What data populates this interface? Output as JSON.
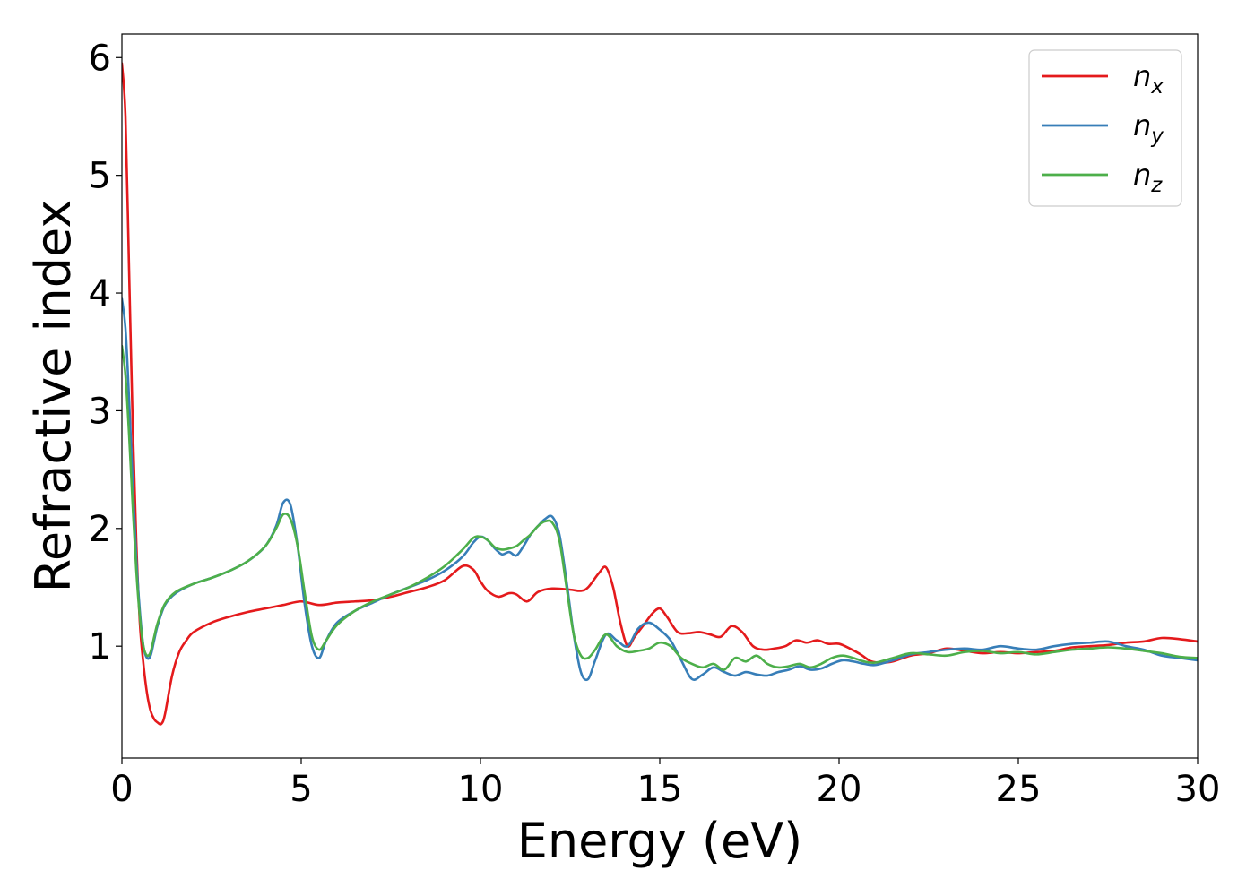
{
  "chart_data": {
    "type": "line",
    "xlabel": "Energy (eV)",
    "ylabel": "Refractive index",
    "xlim": [
      0,
      30
    ],
    "ylim": [
      0.05,
      6.2
    ],
    "xticks": [
      0,
      5,
      10,
      15,
      20,
      25,
      30
    ],
    "yticks": [
      1,
      2,
      3,
      4,
      5,
      6
    ],
    "grid": false,
    "legend_position": "top-right",
    "series": [
      {
        "name": "n",
        "subscript": "x",
        "color": "#e41a1c",
        "x": [
          0,
          0.1,
          0.2,
          0.3,
          0.4,
          0.5,
          0.6,
          0.7,
          0.8,
          0.9,
          1.0,
          1.1,
          1.2,
          1.4,
          1.6,
          1.8,
          2.0,
          2.5,
          3.0,
          3.5,
          4.0,
          4.5,
          5.0,
          5.5,
          6.0,
          6.5,
          7.0,
          7.5,
          8.0,
          8.5,
          9.0,
          9.5,
          9.8,
          10.0,
          10.2,
          10.5,
          10.8,
          11.0,
          11.3,
          11.6,
          12.0,
          12.5,
          12.8,
          13.0,
          13.3,
          13.5,
          13.7,
          13.9,
          14.1,
          14.3,
          14.6,
          14.8,
          15.0,
          15.2,
          15.5,
          15.8,
          16.1,
          16.4,
          16.7,
          17.0,
          17.3,
          17.6,
          17.9,
          18.2,
          18.5,
          18.8,
          19.1,
          19.4,
          19.7,
          20.0,
          20.3,
          20.6,
          20.9,
          21.2,
          21.5,
          22.0,
          22.5,
          23.0,
          23.5,
          24.0,
          24.5,
          25.0,
          25.5,
          26.0,
          26.5,
          27.0,
          27.5,
          28.0,
          28.5,
          29.0,
          29.5,
          30.0
        ],
        "values": [
          5.95,
          5.5,
          4.2,
          2.9,
          1.9,
          1.2,
          0.85,
          0.6,
          0.45,
          0.38,
          0.35,
          0.34,
          0.42,
          0.75,
          0.95,
          1.05,
          1.12,
          1.2,
          1.25,
          1.29,
          1.32,
          1.35,
          1.38,
          1.35,
          1.37,
          1.38,
          1.39,
          1.42,
          1.46,
          1.5,
          1.56,
          1.68,
          1.65,
          1.55,
          1.47,
          1.42,
          1.45,
          1.44,
          1.38,
          1.46,
          1.49,
          1.48,
          1.47,
          1.5,
          1.62,
          1.67,
          1.5,
          1.2,
          1.0,
          1.08,
          1.2,
          1.28,
          1.32,
          1.25,
          1.12,
          1.11,
          1.12,
          1.1,
          1.08,
          1.17,
          1.12,
          1.0,
          0.97,
          0.98,
          1.0,
          1.05,
          1.03,
          1.05,
          1.02,
          1.02,
          0.98,
          0.93,
          0.87,
          0.86,
          0.87,
          0.92,
          0.94,
          0.98,
          0.96,
          0.94,
          0.95,
          0.94,
          0.95,
          0.96,
          0.99,
          1.0,
          1.01,
          1.03,
          1.04,
          1.07,
          1.06,
          1.04
        ]
      },
      {
        "name": "n",
        "subscript": "y",
        "color": "#377eb8",
        "x": [
          0,
          0.1,
          0.2,
          0.3,
          0.4,
          0.5,
          0.6,
          0.7,
          0.8,
          0.9,
          1.0,
          1.2,
          1.5,
          2.0,
          2.5,
          3.0,
          3.5,
          4.0,
          4.3,
          4.5,
          4.7,
          4.9,
          5.1,
          5.3,
          5.5,
          5.7,
          6.0,
          6.5,
          7.0,
          7.5,
          8.0,
          8.5,
          9.0,
          9.5,
          9.8,
          10.0,
          10.2,
          10.4,
          10.6,
          10.8,
          11.0,
          11.2,
          11.4,
          11.6,
          11.8,
          12.0,
          12.2,
          12.4,
          12.6,
          12.8,
          13.0,
          13.2,
          13.5,
          13.8,
          14.1,
          14.4,
          14.7,
          15.0,
          15.3,
          15.6,
          15.9,
          16.2,
          16.5,
          16.8,
          17.1,
          17.4,
          17.7,
          18.0,
          18.3,
          18.6,
          18.9,
          19.2,
          19.5,
          19.8,
          20.1,
          20.4,
          20.7,
          21.0,
          21.5,
          22.0,
          22.5,
          23.0,
          23.5,
          24.0,
          24.5,
          25.0,
          25.5,
          26.0,
          26.5,
          27.0,
          27.5,
          28.0,
          28.5,
          29.0,
          29.5,
          30.0
        ],
        "values": [
          3.95,
          3.7,
          3.1,
          2.4,
          1.75,
          1.3,
          1.0,
          0.9,
          0.92,
          1.05,
          1.18,
          1.35,
          1.45,
          1.53,
          1.58,
          1.64,
          1.72,
          1.85,
          2.02,
          2.22,
          2.2,
          1.85,
          1.35,
          1.0,
          0.9,
          1.05,
          1.2,
          1.3,
          1.37,
          1.44,
          1.5,
          1.56,
          1.64,
          1.76,
          1.88,
          1.93,
          1.9,
          1.83,
          1.78,
          1.8,
          1.77,
          1.85,
          1.95,
          2.02,
          2.08,
          2.1,
          1.95,
          1.55,
          1.1,
          0.78,
          0.72,
          0.88,
          1.1,
          1.05,
          1.0,
          1.15,
          1.2,
          1.14,
          1.05,
          0.88,
          0.72,
          0.76,
          0.82,
          0.78,
          0.75,
          0.78,
          0.76,
          0.75,
          0.78,
          0.8,
          0.83,
          0.8,
          0.81,
          0.85,
          0.88,
          0.87,
          0.85,
          0.84,
          0.88,
          0.93,
          0.95,
          0.97,
          0.98,
          0.97,
          1.0,
          0.98,
          0.97,
          1.0,
          1.02,
          1.03,
          1.04,
          1.0,
          0.97,
          0.92,
          0.9,
          0.88
        ]
      },
      {
        "name": "n",
        "subscript": "z",
        "color": "#4daf4a",
        "x": [
          0,
          0.1,
          0.2,
          0.3,
          0.4,
          0.5,
          0.6,
          0.7,
          0.8,
          0.9,
          1.0,
          1.2,
          1.5,
          2.0,
          2.5,
          3.0,
          3.5,
          4.0,
          4.3,
          4.5,
          4.7,
          4.9,
          5.1,
          5.3,
          5.5,
          5.7,
          6.0,
          6.5,
          7.0,
          7.5,
          8.0,
          8.5,
          9.0,
          9.5,
          9.8,
          10.0,
          10.2,
          10.4,
          10.6,
          10.8,
          11.0,
          11.2,
          11.4,
          11.6,
          11.8,
          12.0,
          12.2,
          12.4,
          12.6,
          12.8,
          13.0,
          13.2,
          13.5,
          13.8,
          14.1,
          14.4,
          14.7,
          15.0,
          15.3,
          15.6,
          15.9,
          16.2,
          16.5,
          16.8,
          17.1,
          17.4,
          17.7,
          18.0,
          18.3,
          18.6,
          18.9,
          19.2,
          19.5,
          19.8,
          20.1,
          20.4,
          20.7,
          21.0,
          21.5,
          22.0,
          22.5,
          23.0,
          23.5,
          24.0,
          24.5,
          25.0,
          25.5,
          26.0,
          26.5,
          27.0,
          27.5,
          28.0,
          28.5,
          29.0,
          29.5,
          30.0
        ],
        "values": [
          3.55,
          3.3,
          2.8,
          2.2,
          1.65,
          1.25,
          1.0,
          0.92,
          0.95,
          1.08,
          1.2,
          1.36,
          1.46,
          1.53,
          1.58,
          1.64,
          1.72,
          1.85,
          2.0,
          2.12,
          2.08,
          1.85,
          1.45,
          1.08,
          0.97,
          1.05,
          1.18,
          1.3,
          1.38,
          1.44,
          1.5,
          1.58,
          1.68,
          1.82,
          1.92,
          1.93,
          1.9,
          1.84,
          1.82,
          1.83,
          1.85,
          1.9,
          1.95,
          2.02,
          2.06,
          2.05,
          1.9,
          1.5,
          1.1,
          0.92,
          0.9,
          0.97,
          1.1,
          1.0,
          0.95,
          0.96,
          0.98,
          1.03,
          1.0,
          0.9,
          0.85,
          0.82,
          0.85,
          0.8,
          0.9,
          0.87,
          0.92,
          0.85,
          0.82,
          0.83,
          0.85,
          0.82,
          0.85,
          0.9,
          0.92,
          0.9,
          0.87,
          0.86,
          0.9,
          0.94,
          0.93,
          0.92,
          0.95,
          0.96,
          0.94,
          0.95,
          0.93,
          0.95,
          0.97,
          0.98,
          0.99,
          0.98,
          0.96,
          0.94,
          0.91,
          0.9
        ]
      }
    ]
  }
}
